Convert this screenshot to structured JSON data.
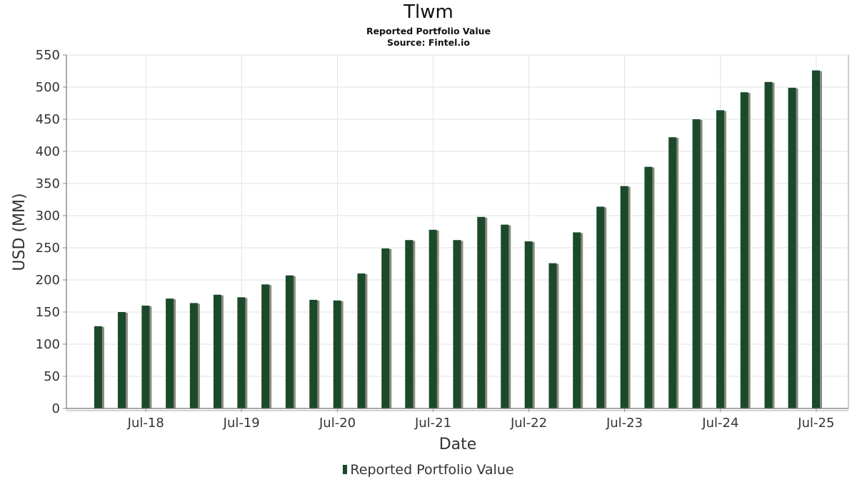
{
  "chart_data": {
    "type": "bar",
    "title": "Tlwm",
    "subtitle": "Reported Portfolio Value",
    "source": "Source: Fintel.io",
    "xlabel": "Date",
    "ylabel": "USD (MM)",
    "ylim": [
      0,
      550
    ],
    "yticks": [
      0,
      50,
      100,
      150,
      200,
      250,
      300,
      350,
      400,
      450,
      500,
      550
    ],
    "xlim": [
      "2017-09-01",
      "2025-11-01"
    ],
    "xticks": [
      {
        "date": "2018-07-01",
        "label": "Jul-18"
      },
      {
        "date": "2019-07-01",
        "label": "Jul-19"
      },
      {
        "date": "2020-07-01",
        "label": "Jul-20"
      },
      {
        "date": "2021-07-01",
        "label": "Jul-21"
      },
      {
        "date": "2022-07-01",
        "label": "Jul-22"
      },
      {
        "date": "2023-07-01",
        "label": "Jul-23"
      },
      {
        "date": "2024-07-01",
        "label": "Jul-24"
      },
      {
        "date": "2025-07-01",
        "label": "Jul-25"
      }
    ],
    "grid": true,
    "legend_position": "bottom",
    "bar_color": "#1a4a2a",
    "shadow_color": "#8a8a80",
    "series": [
      {
        "name": "Reported Portfolio Value",
        "x": [
          "2017-12-31",
          "2018-03-31",
          "2018-06-30",
          "2018-09-30",
          "2018-12-31",
          "2019-03-31",
          "2019-06-30",
          "2019-09-30",
          "2019-12-31",
          "2020-03-31",
          "2020-06-30",
          "2020-09-30",
          "2020-12-31",
          "2021-03-31",
          "2021-06-30",
          "2021-09-30",
          "2021-12-31",
          "2022-03-31",
          "2022-06-30",
          "2022-09-30",
          "2022-12-31",
          "2023-03-31",
          "2023-06-30",
          "2023-09-30",
          "2023-12-31",
          "2024-03-31",
          "2024-06-30",
          "2024-09-30",
          "2024-12-31",
          "2025-03-31",
          "2025-06-30"
        ],
        "values": [
          128,
          150,
          160,
          171,
          164,
          177,
          173,
          193,
          207,
          169,
          168,
          210,
          249,
          262,
          278,
          262,
          298,
          286,
          260,
          226,
          274,
          314,
          346,
          376,
          422,
          450,
          464,
          492,
          508,
          499,
          526
        ]
      }
    ]
  }
}
